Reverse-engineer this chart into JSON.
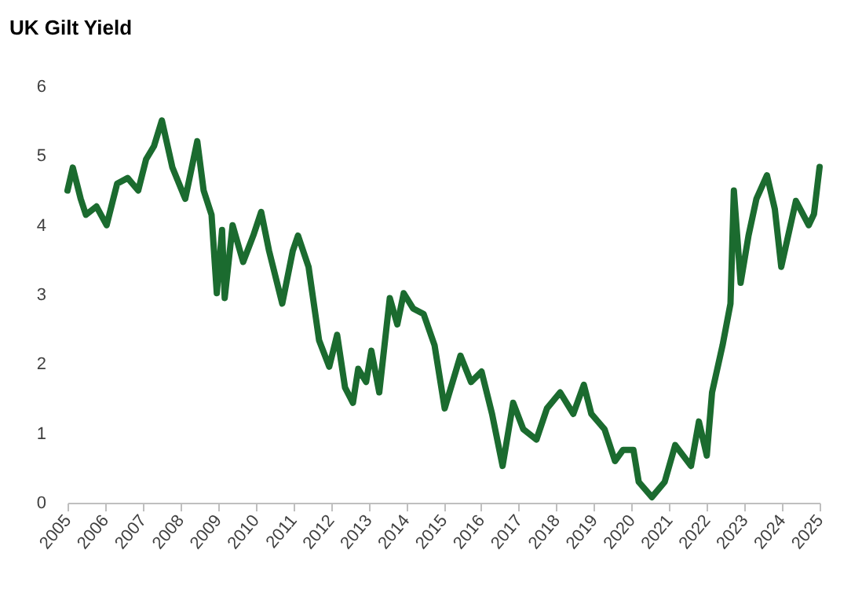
{
  "chart_data": {
    "type": "line",
    "title": "UK Gilt Yield",
    "xlim": [
      2005,
      2025
    ],
    "xticks": [
      2005,
      2006,
      2007,
      2008,
      2009,
      2010,
      2011,
      2012,
      2013,
      2014,
      2015,
      2016,
      2017,
      2018,
      2019,
      2020,
      2021,
      2022,
      2023,
      2024,
      2025
    ],
    "ylim": [
      0,
      6
    ],
    "yticks": [
      0,
      1,
      2,
      3,
      4,
      5,
      6
    ],
    "grid": false,
    "line_style": "solid",
    "marker": "none",
    "series": [
      {
        "color": "#1b6b2f",
        "x": [
          2005.0,
          2005.14,
          2005.35,
          2005.49,
          2005.77,
          2006.04,
          2006.32,
          2006.6,
          2006.88,
          2007.09,
          2007.3,
          2007.51,
          2007.79,
          2008.13,
          2008.45,
          2008.62,
          2008.83,
          2008.97,
          2009.11,
          2009.18,
          2009.39,
          2009.67,
          2009.94,
          2010.15,
          2010.36,
          2010.71,
          2010.99,
          2011.13,
          2011.41,
          2011.69,
          2011.96,
          2012.17,
          2012.38,
          2012.59,
          2012.73,
          2012.94,
          2013.08,
          2013.29,
          2013.57,
          2013.77,
          2013.94,
          2014.19,
          2014.47,
          2014.76,
          2015.03,
          2015.45,
          2015.73,
          2016.01,
          2016.29,
          2016.57,
          2016.85,
          2017.12,
          2017.47,
          2017.75,
          2018.1,
          2018.45,
          2018.73,
          2018.93,
          2019.28,
          2019.56,
          2019.77,
          2020.05,
          2020.19,
          2020.54,
          2020.88,
          2021.16,
          2021.58,
          2021.79,
          2022.0,
          2022.14,
          2022.42,
          2022.63,
          2022.72,
          2022.9,
          2023.11,
          2023.32,
          2023.6,
          2023.81,
          2023.98,
          2024.37,
          2024.71,
          2024.85,
          2025.0
        ],
        "values": [
          4.5,
          4.83,
          4.38,
          4.15,
          4.27,
          4.0,
          4.6,
          4.68,
          4.5,
          4.95,
          5.14,
          5.51,
          4.83,
          4.38,
          5.21,
          4.5,
          4.15,
          3.02,
          3.93,
          2.95,
          4.0,
          3.47,
          3.85,
          4.19,
          3.63,
          2.87,
          3.63,
          3.85,
          3.4,
          2.34,
          1.96,
          2.42,
          1.66,
          1.44,
          1.93,
          1.74,
          2.19,
          1.59,
          2.95,
          2.57,
          3.02,
          2.8,
          2.72,
          2.27,
          1.36,
          2.12,
          1.74,
          1.89,
          1.28,
          0.53,
          1.44,
          1.06,
          0.91,
          1.36,
          1.59,
          1.28,
          1.7,
          1.28,
          1.06,
          0.6,
          0.76,
          0.76,
          0.3,
          0.08,
          0.3,
          0.83,
          0.53,
          1.17,
          0.68,
          1.59,
          2.27,
          2.87,
          4.5,
          3.17,
          3.85,
          4.38,
          4.72,
          4.23,
          3.4,
          4.35,
          4.0,
          4.16,
          4.84
        ]
      }
    ]
  }
}
